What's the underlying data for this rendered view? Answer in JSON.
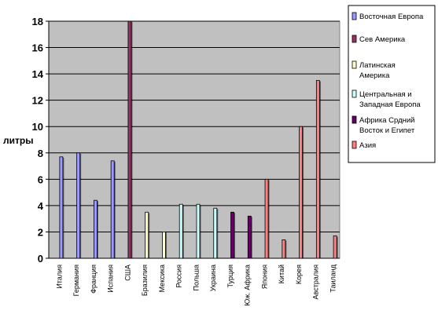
{
  "chart_data": {
    "type": "bar",
    "ylabel": "литры",
    "ylim": [
      0,
      18
    ],
    "yticks": [
      0,
      2,
      4,
      6,
      8,
      10,
      12,
      14,
      16,
      18
    ],
    "grid": "horizontal",
    "legend_position": "right",
    "plot_background": "#c0c0c0",
    "categories": [
      "Италия",
      "Германия",
      "Франция",
      "Испания",
      "США",
      "Бразилия",
      "Мексика",
      "Россия",
      "Польша",
      "Украина",
      "Турция",
      "Юж. Африка",
      "Япония",
      "Китай",
      "Корея",
      "Австралия",
      "Таиланд"
    ],
    "series": [
      {
        "name": "Восточная Европа",
        "color": "#9999ff",
        "values": [
          7.7,
          8.0,
          4.4,
          7.4,
          null,
          null,
          null,
          null,
          null,
          null,
          null,
          null,
          null,
          null,
          null,
          null,
          null
        ]
      },
      {
        "name": "Сев Америка",
        "color": "#993366",
        "values": [
          null,
          null,
          null,
          null,
          18.0,
          null,
          null,
          null,
          null,
          null,
          null,
          null,
          null,
          null,
          null,
          null,
          null
        ]
      },
      {
        "name": "Латинская Америка",
        "color": "#ffffcc",
        "values": [
          null,
          null,
          null,
          null,
          null,
          3.5,
          2.0,
          null,
          null,
          null,
          null,
          null,
          null,
          null,
          null,
          null,
          null
        ]
      },
      {
        "name": "Центральная и Западная Европа",
        "color": "#ccffff",
        "values": [
          null,
          null,
          null,
          null,
          null,
          null,
          null,
          4.1,
          4.1,
          3.8,
          null,
          null,
          null,
          null,
          null,
          null,
          null
        ]
      },
      {
        "name": "Африка Средний Восток и Египет",
        "color": "#660066",
        "values": [
          null,
          null,
          null,
          null,
          null,
          null,
          null,
          null,
          null,
          null,
          3.5,
          3.2,
          null,
          null,
          null,
          null,
          null
        ]
      },
      {
        "name": "Азия",
        "color": "#ff8080",
        "values": [
          null,
          null,
          null,
          null,
          null,
          null,
          null,
          null,
          null,
          null,
          null,
          null,
          6.0,
          1.4,
          10.0,
          13.5,
          1.7
        ]
      }
    ],
    "legend_entries": [
      "Восточная Европа",
      "Сев Америка",
      "Латинская\nАмерика",
      "Центральная и\nЗападная Европа",
      "Африка Срдний\nВосток и Египет",
      "Азия"
    ]
  }
}
